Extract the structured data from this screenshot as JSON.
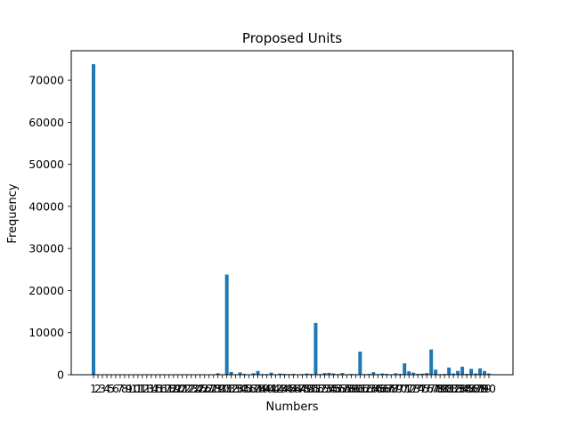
{
  "chart_data": {
    "type": "bar",
    "title": "Proposed Units",
    "xlabel": "Numbers",
    "ylabel": "Frequency",
    "ylim": [
      0,
      77000
    ],
    "yticks": [
      0,
      10000,
      20000,
      30000,
      40000,
      50000,
      60000,
      70000
    ],
    "ytick_labels": [
      "0",
      "10000",
      "20000",
      "30000",
      "40000",
      "50000",
      "60000",
      "70000"
    ],
    "bar_color": "#1f77b4",
    "grid": false,
    "categories": [
      "1",
      "2",
      "3",
      "4",
      "5",
      "6",
      "7",
      "8",
      "9",
      "10",
      "11",
      "12",
      "13",
      "14",
      "15",
      "16",
      "17",
      "18",
      "19",
      "20",
      "21",
      "22",
      "23",
      "24",
      "25",
      "26",
      "27",
      "28",
      "29",
      "30",
      "31",
      "32",
      "33",
      "34",
      "35",
      "36",
      "37",
      "38",
      "39",
      "40",
      "41",
      "42",
      "43",
      "44",
      "45",
      "46",
      "47",
      "48",
      "49",
      "50",
      "51",
      "52",
      "53",
      "54",
      "55",
      "56",
      "57",
      "58",
      "59",
      "60",
      "61",
      "62",
      "63",
      "64",
      "65",
      "66",
      "67",
      "68",
      "69",
      "70",
      "71",
      "72",
      "73",
      "74",
      "75",
      "76",
      "77",
      "78",
      "79",
      "80",
      "81",
      "82",
      "83",
      "84",
      "85",
      "86",
      "87",
      "88",
      "89",
      "90"
    ],
    "values": [
      73800,
      0,
      0,
      0,
      0,
      0,
      0,
      0,
      0,
      0,
      0,
      0,
      0,
      0,
      0,
      0,
      0,
      0,
      0,
      0,
      0,
      0,
      0,
      0,
      0,
      100,
      0,
      0,
      350,
      100,
      23800,
      650,
      100,
      550,
      200,
      100,
      350,
      900,
      150,
      150,
      500,
      100,
      300,
      200,
      150,
      200,
      100,
      150,
      300,
      200,
      12300,
      150,
      400,
      450,
      300,
      150,
      400,
      100,
      200,
      150,
      5500,
      150,
      200,
      600,
      150,
      300,
      200,
      100,
      350,
      200,
      2700,
      800,
      500,
      200,
      250,
      400,
      6000,
      1200,
      150,
      200,
      1700,
      300,
      900,
      1900,
      200,
      1400,
      300,
      1500,
      900,
      300
    ]
  }
}
